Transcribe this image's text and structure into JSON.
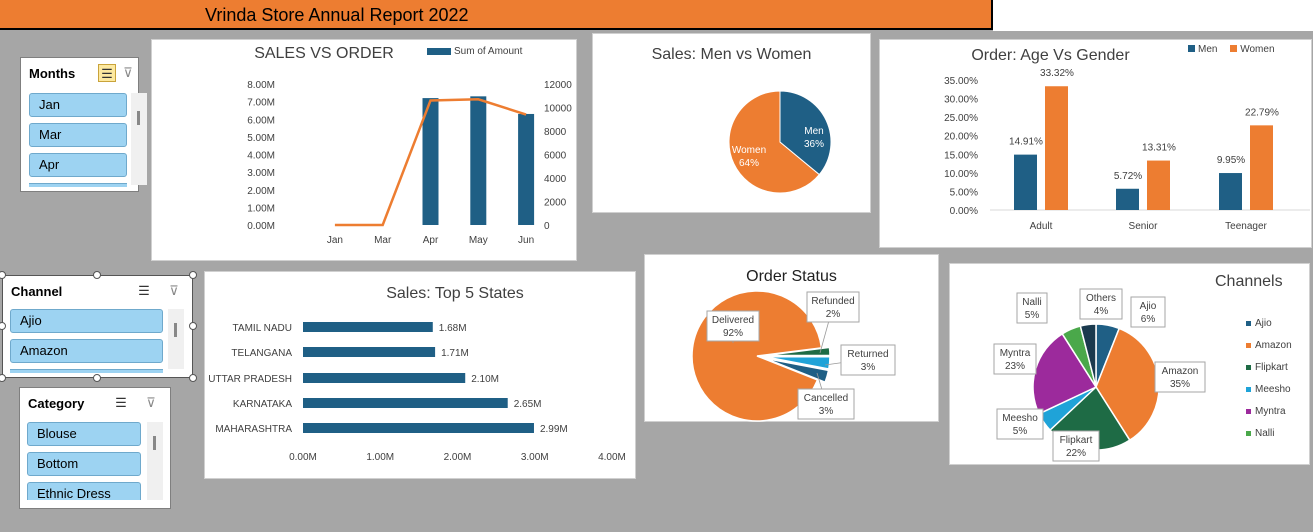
{
  "report": {
    "title": "Vrinda Store Annual Report  2022"
  },
  "colors": {
    "men": "#1f5f85",
    "women": "#ed7d31",
    "line": "#ed7d31"
  },
  "slicers": {
    "months": {
      "title": "Months",
      "items": [
        "Jan",
        "Mar",
        "Apr"
      ]
    },
    "channel": {
      "title": "Channel",
      "items": [
        "Ajio",
        "Amazon"
      ]
    },
    "category": {
      "title": "Category",
      "items": [
        "Blouse",
        "Bottom",
        "Ethnic Dress"
      ]
    }
  },
  "charts": {
    "sales_order": {
      "title": "SALES VS ORDER",
      "legend": "Sum of Amount",
      "left_ticks": [
        "0.00M",
        "1.00M",
        "2.00M",
        "3.00M",
        "4.00M",
        "5.00M",
        "6.00M",
        "7.00M",
        "8.00M"
      ],
      "right_ticks": [
        "0",
        "2000",
        "4000",
        "6000",
        "8000",
        "10000",
        "12000"
      ],
      "categories": [
        "Jan",
        "Mar",
        "Apr",
        "May",
        "Jun"
      ]
    },
    "men_women": {
      "title": "Sales: Men vs Women",
      "men_label": "Men",
      "men_pct": "36%",
      "women_label": "Women",
      "women_pct": "64%"
    },
    "age_gender": {
      "title": "Order: Age Vs Gender",
      "legend_men": "Men",
      "legend_women": "Women",
      "ticks": [
        "0.00%",
        "5.00%",
        "10.00%",
        "15.00%",
        "20.00%",
        "25.00%",
        "30.00%",
        "35.00%"
      ],
      "categories": [
        "Adult",
        "Senior",
        "Teenager"
      ],
      "men_labels": [
        "14.91%",
        "5.72%",
        "9.95%"
      ],
      "women_labels": [
        "33.32%",
        "13.31%",
        "22.79%"
      ]
    },
    "top_states": {
      "title": "Sales: Top 5 States",
      "states": [
        "TAMIL NADU",
        "TELANGANA",
        "UTTAR PRADESH",
        "KARNATAKA",
        "MAHARASHTRA"
      ],
      "value_labels": [
        "1.68M",
        "1.71M",
        "2.10M",
        "2.65M",
        "2.99M"
      ],
      "ticks": [
        "0.00M",
        "1.00M",
        "2.00M",
        "3.00M",
        "4.00M"
      ]
    },
    "order_status": {
      "title": "Order Status",
      "labels": [
        {
          "name": "Delivered",
          "pct": "92%"
        },
        {
          "name": "Refunded",
          "pct": "2%"
        },
        {
          "name": "Returned",
          "pct": "3%"
        },
        {
          "name": "Cancelled",
          "pct": "3%"
        }
      ]
    },
    "channels": {
      "title": "Channels",
      "labels": [
        {
          "name": "Ajio",
          "pct": "6%"
        },
        {
          "name": "Amazon",
          "pct": "35%"
        },
        {
          "name": "Flipkart",
          "pct": "22%"
        },
        {
          "name": "Meesho",
          "pct": "5%"
        },
        {
          "name": "Myntra",
          "pct": "23%"
        },
        {
          "name": "Nalli",
          "pct": "5%"
        },
        {
          "name": "Others",
          "pct": "4%"
        }
      ],
      "legend": [
        "Ajio",
        "Amazon",
        "Flipkart",
        "Meesho",
        "Myntra",
        "Nalli"
      ]
    }
  },
  "chart_data": [
    {
      "type": "bar",
      "title": "SALES VS ORDER",
      "categories": [
        "Jan",
        "Mar",
        "Apr",
        "May",
        "Jun"
      ],
      "series": [
        {
          "name": "Sum of Amount",
          "values": [
            0,
            0,
            7.2,
            7.3,
            6.3
          ]
        },
        {
          "values": [
            0,
            0,
            10600,
            10700,
            9400
          ]
        }
      ],
      "ylim": [
        0,
        8
      ],
      "y2lim": [
        0,
        12000
      ]
    },
    {
      "type": "pie",
      "title": "Sales: Men vs Women",
      "categories": [
        "Men",
        "Women"
      ],
      "values": [
        36,
        64
      ]
    },
    {
      "type": "bar",
      "title": "Order: Age Vs Gender",
      "categories": [
        "Adult",
        "Senior",
        "Teenager"
      ],
      "series": [
        {
          "name": "Men",
          "values": [
            14.91,
            5.72,
            9.95
          ]
        },
        {
          "name": "Women",
          "values": [
            33.32,
            13.31,
            22.79
          ]
        }
      ],
      "ylim": [
        0,
        35
      ],
      "legend": "top-right"
    },
    {
      "type": "bar",
      "title": "Sales: Top 5 States",
      "categories": [
        "TAMIL NADU",
        "TELANGANA",
        "UTTAR PRADESH",
        "KARNATAKA",
        "MAHARASHTRA"
      ],
      "values": [
        1.68,
        1.71,
        2.1,
        2.65,
        2.99
      ],
      "xlim": [
        0,
        4
      ]
    },
    {
      "type": "pie",
      "title": "Order Status",
      "categories": [
        "Delivered",
        "Refunded",
        "Returned",
        "Cancelled"
      ],
      "values": [
        92,
        2,
        3,
        3
      ]
    },
    {
      "type": "pie",
      "title": "Channels",
      "categories": [
        "Ajio",
        "Amazon",
        "Flipkart",
        "Meesho",
        "Myntra",
        "Nalli",
        "Others"
      ],
      "values": [
        6,
        35,
        22,
        5,
        23,
        5,
        4
      ],
      "legend": "right"
    }
  ]
}
